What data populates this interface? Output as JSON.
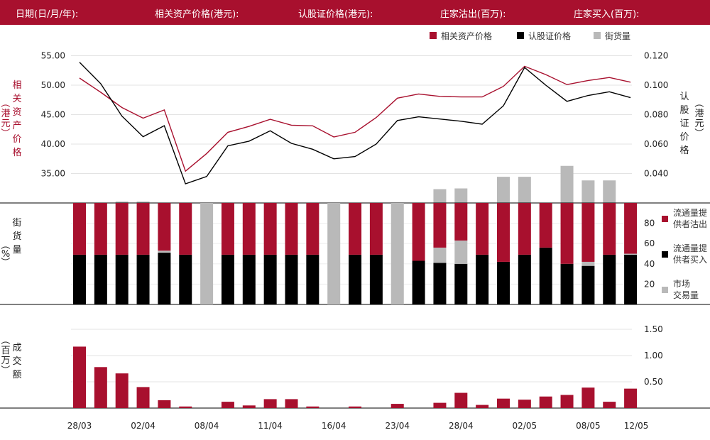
{
  "header": {
    "date_label": "日期(日/月/年):",
    "underlying_label": "相关资产价格(港元):",
    "warrant_label": "认股证价格(港元):",
    "mm_out_label": "庄家沽出(百万):",
    "mm_in_label": "庄家买入(百万):"
  },
  "colors": {
    "brand": "#a8102e",
    "black": "#000000",
    "gray": "#b9b9b9"
  },
  "chart_data": {
    "type": "line",
    "x_ticks": [
      "28/03",
      "02/04",
      "08/04",
      "11/04",
      "16/04",
      "23/04",
      "28/04",
      "02/05",
      "08/05",
      "12/05"
    ],
    "price_panel": {
      "legend": [
        "相关资产价格",
        "认股证价格",
        "街货量"
      ],
      "left_axis_label": "相关资产价格（港元）",
      "right_axis_label": "认股证价格（港元）",
      "left_ticks": [
        "55.00",
        "50.00",
        "45.00",
        "40.00",
        "35.00"
      ],
      "right_ticks": [
        "0.120",
        "0.100",
        "0.080",
        "0.060",
        "0.040"
      ],
      "left_ylim": [
        30,
        55
      ],
      "right_ylim": [
        0.02,
        0.12
      ],
      "underlying_price": [
        51.2,
        48.8,
        46.2,
        44.4,
        45.8,
        35.4,
        38.4,
        42.0,
        43.0,
        44.2,
        43.2,
        43.1,
        41.2,
        42.0,
        44.5,
        47.8,
        48.5,
        48.1,
        48.0,
        48.0,
        49.8,
        53.2,
        51.8,
        50.1,
        50.8,
        51.3,
        50.5
      ],
      "warrant_price": [
        0.1155,
        0.101,
        0.079,
        0.065,
        0.0725,
        0.033,
        0.038,
        0.0588,
        0.062,
        0.069,
        0.0605,
        0.0565,
        0.05,
        0.0515,
        0.06,
        0.076,
        0.0785,
        0.077,
        0.0755,
        0.0735,
        0.086,
        0.112,
        0.1,
        0.089,
        0.093,
        0.0955,
        0.0915
      ],
      "street_volume": [
        null,
        null,
        1,
        1,
        null,
        null,
        null,
        null,
        null,
        null,
        null,
        null,
        null,
        null,
        null,
        null,
        null,
        9.5,
        10,
        null,
        18,
        18,
        null,
        25.5,
        15.5,
        15.5,
        null
      ]
    },
    "ratio_panel": {
      "axis_label": "街货量（%）",
      "y_ticks": [
        "80",
        "60",
        "40",
        "20"
      ],
      "ylim": [
        0,
        100
      ],
      "legend": [
        "流通量提供者沽出",
        "流通量提供者买入",
        "市场交易量"
      ],
      "liquidity_buy": [
        49,
        49,
        49,
        49,
        51,
        49,
        null,
        49,
        49,
        49,
        49,
        49,
        null,
        49,
        49,
        null,
        43,
        41,
        40,
        49,
        42,
        49,
        56,
        40,
        38,
        49,
        49
      ],
      "market_volume": [
        0,
        0,
        0,
        0,
        2,
        0,
        100,
        0,
        0,
        0,
        0,
        0,
        100,
        0,
        0,
        100,
        0,
        15,
        23,
        0,
        0,
        0,
        0,
        0,
        4,
        0,
        1
      ],
      "liquidity_sell": [
        51,
        51,
        51,
        51,
        47,
        51,
        0,
        51,
        51,
        51,
        51,
        51,
        0,
        51,
        51,
        0,
        57,
        44,
        37,
        51,
        58,
        51,
        44,
        60,
        58,
        51,
        50
      ]
    },
    "turnover_panel": {
      "axis_label": "成交额（百万）",
      "y_ticks": [
        "1.50",
        "1.00",
        "0.50"
      ],
      "ylim": [
        0,
        1.55
      ],
      "values": [
        1.17,
        0.78,
        0.66,
        0.4,
        0.15,
        0.03,
        0,
        0.12,
        0.05,
        0.17,
        0.17,
        0.03,
        0,
        0.03,
        0,
        0.08,
        0,
        0.1,
        0.29,
        0.06,
        0.18,
        0.16,
        0.22,
        0.25,
        0.39,
        0.12,
        0.37
      ]
    }
  }
}
